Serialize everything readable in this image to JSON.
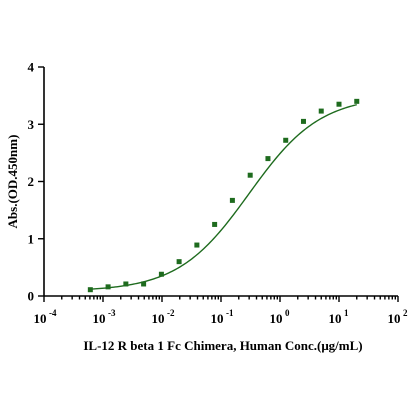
{
  "chart_data": {
    "type": "scatter",
    "xlabel": "IL-12 R beta 1 Fc Chimera, Human Conc.(μg/mL)",
    "ylabel": "Abs.(OD.450nm)",
    "x_scale": "log",
    "xlim": [
      0.0001,
      100
    ],
    "ylim": [
      0,
      4
    ],
    "x_ticks": [
      {
        "base": "10",
        "exp": "-4"
      },
      {
        "base": "10",
        "exp": "-3"
      },
      {
        "base": "10",
        "exp": "-2"
      },
      {
        "base": "10",
        "exp": "-1"
      },
      {
        "base": "10",
        "exp": "0"
      },
      {
        "base": "10",
        "exp": "1"
      },
      {
        "base": "10",
        "exp": "2"
      }
    ],
    "y_ticks": [
      "0",
      "1",
      "2",
      "3",
      "4"
    ],
    "grid": false,
    "color": "#1e6b1e",
    "series": [
      {
        "marker": "square",
        "points": [
          {
            "x": 0.00061,
            "y": 0.11
          },
          {
            "x": 0.00122,
            "y": 0.16
          },
          {
            "x": 0.00244,
            "y": 0.21
          },
          {
            "x": 0.00488,
            "y": 0.21
          },
          {
            "x": 0.00977,
            "y": 0.38
          },
          {
            "x": 0.0195,
            "y": 0.6
          },
          {
            "x": 0.039,
            "y": 0.89
          },
          {
            "x": 0.078,
            "y": 1.25
          },
          {
            "x": 0.156,
            "y": 1.67
          },
          {
            "x": 0.3125,
            "y": 2.11
          },
          {
            "x": 0.625,
            "y": 2.4
          },
          {
            "x": 1.25,
            "y": 2.72
          },
          {
            "x": 2.5,
            "y": 3.05
          },
          {
            "x": 5,
            "y": 3.23
          },
          {
            "x": 10,
            "y": 3.35
          },
          {
            "x": 20,
            "y": 3.4
          }
        ]
      }
    ],
    "fit": {
      "type": "4PL",
      "bottom": 0.08,
      "top": 3.5,
      "ec50": 0.3,
      "hill": 0.72
    }
  }
}
